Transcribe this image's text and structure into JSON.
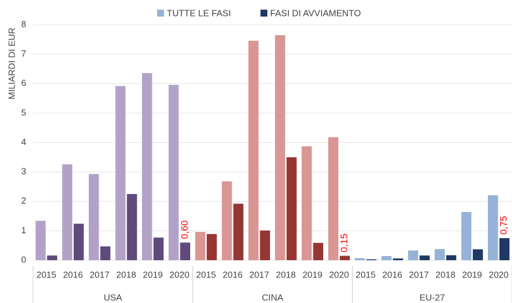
{
  "chart_data": {
    "type": "bar",
    "y_label": "MILIARDI DI EUR",
    "ylim": [
      0,
      8
    ],
    "yticks": [
      0,
      1,
      2,
      3,
      4,
      5,
      6,
      7,
      8
    ],
    "grid": true,
    "legend": [
      {
        "name": "TUTTE LE FASI",
        "color": "#95b3d7"
      },
      {
        "name": "FASI DI AVVIAMENTO",
        "color": "#1f3864"
      }
    ],
    "groups": [
      {
        "name": "USA",
        "categories": [
          "2015",
          "2016",
          "2017",
          "2018",
          "2019",
          "2020"
        ],
        "series": [
          {
            "color": "#b3a2c8",
            "values": [
              1.34,
              3.26,
              2.93,
              5.92,
              6.36,
              5.96
            ]
          },
          {
            "color": "#604a7b",
            "values": [
              0.16,
              1.24,
              0.47,
              2.25,
              0.77,
              0.6
            ],
            "value_labels": [
              null,
              null,
              null,
              null,
              null,
              "0,60"
            ]
          }
        ]
      },
      {
        "name": "CINA",
        "categories": [
          "2015",
          "2016",
          "2017",
          "2018",
          "2019",
          "2020"
        ],
        "series": [
          {
            "color": "#d99694",
            "values": [
              0.96,
              2.68,
              7.46,
              7.65,
              3.87,
              4.18
            ]
          },
          {
            "color": "#953735",
            "values": [
              0.89,
              1.92,
              1.01,
              3.5,
              0.59,
              0.15
            ],
            "value_labels": [
              null,
              null,
              null,
              null,
              null,
              "0,15"
            ]
          }
        ]
      },
      {
        "name": "EU-27",
        "categories": [
          "2015",
          "2016",
          "2017",
          "2018",
          "2019",
          "2020"
        ],
        "series": [
          {
            "color": "#95b3d7",
            "values": [
              0.07,
              0.14,
              0.33,
              0.38,
              1.64,
              2.21
            ]
          },
          {
            "color": "#1f3864",
            "values": [
              0.03,
              0.06,
              0.16,
              0.17,
              0.37,
              0.75
            ],
            "value_labels": [
              null,
              null,
              null,
              null,
              null,
              "0,75"
            ]
          }
        ]
      }
    ]
  }
}
